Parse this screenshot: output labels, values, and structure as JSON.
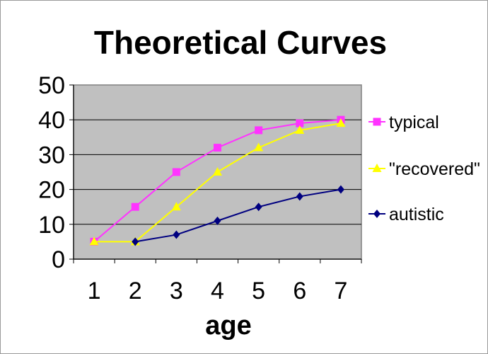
{
  "chart_data": {
    "type": "line",
    "title": "Theoretical Curves",
    "xlabel": "age",
    "ylabel": "",
    "categories": [
      "1",
      "2",
      "3",
      "4",
      "5",
      "6",
      "7"
    ],
    "ylim": [
      0,
      50
    ],
    "yticks": [
      0,
      10,
      20,
      30,
      40,
      50
    ],
    "grid": true,
    "legend_position": "right",
    "plot_background": "#c0c0c0",
    "series": [
      {
        "name": "typical",
        "color": "#ff33ff",
        "marker": "square",
        "x": [
          1,
          2,
          3,
          4,
          5,
          6,
          7
        ],
        "values": [
          5,
          15,
          25,
          32,
          37,
          39,
          40
        ]
      },
      {
        "name": "\"recovered\"",
        "color": "#ffff00",
        "marker": "triangle",
        "x": [
          1,
          2,
          3,
          4,
          5,
          6,
          7
        ],
        "values": [
          5,
          5,
          15,
          25,
          32,
          37,
          39
        ]
      },
      {
        "name": "autistic",
        "color": "#000080",
        "marker": "diamond",
        "x": [
          2,
          3,
          4,
          5,
          6,
          7
        ],
        "values": [
          5,
          7,
          11,
          15,
          18,
          20
        ]
      }
    ]
  }
}
